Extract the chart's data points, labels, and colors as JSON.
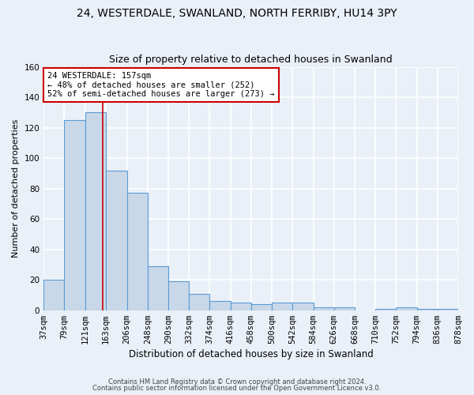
{
  "title1": "24, WESTERDALE, SWANLAND, NORTH FERRIBY, HU14 3PY",
  "title2": "Size of property relative to detached houses in Swanland",
  "xlabel": "Distribution of detached houses by size in Swanland",
  "ylabel": "Number of detached properties",
  "footer1": "Contains HM Land Registry data © Crown copyright and database right 2024.",
  "footer2": "Contains public sector information licensed under the Open Government Licence v3.0.",
  "bin_edges": [
    37,
    79,
    121,
    163,
    206,
    248,
    290,
    332,
    374,
    416,
    458,
    500,
    542,
    584,
    626,
    668,
    710,
    752,
    794,
    836,
    878
  ],
  "bar_heights": [
    20,
    125,
    130,
    92,
    77,
    29,
    19,
    11,
    6,
    5,
    4,
    5,
    5,
    2,
    2,
    0,
    1,
    2,
    1,
    1
  ],
  "bar_color": "#c8d8e8",
  "bar_edge_color": "#5b9bd5",
  "bar_edge_width": 0.8,
  "red_line_x": 157,
  "annotation_line1": "24 WESTERDALE: 157sqm",
  "annotation_line2": "← 48% of detached houses are smaller (252)",
  "annotation_line3": "52% of semi-detached houses are larger (273) →",
  "annotation_box_color": "#ffffff",
  "annotation_box_edge": "#cc0000",
  "ylim": [
    0,
    160
  ],
  "yticks": [
    0,
    20,
    40,
    60,
    80,
    100,
    120,
    140,
    160
  ],
  "background_color": "#eaf0f8",
  "grid_color": "#ffffff",
  "title1_fontsize": 10,
  "title2_fontsize": 9,
  "axis_label_fontsize": 8.5,
  "tick_fontsize": 7.5,
  "annotation_fontsize": 7.5,
  "ylabel_fontsize": 8
}
